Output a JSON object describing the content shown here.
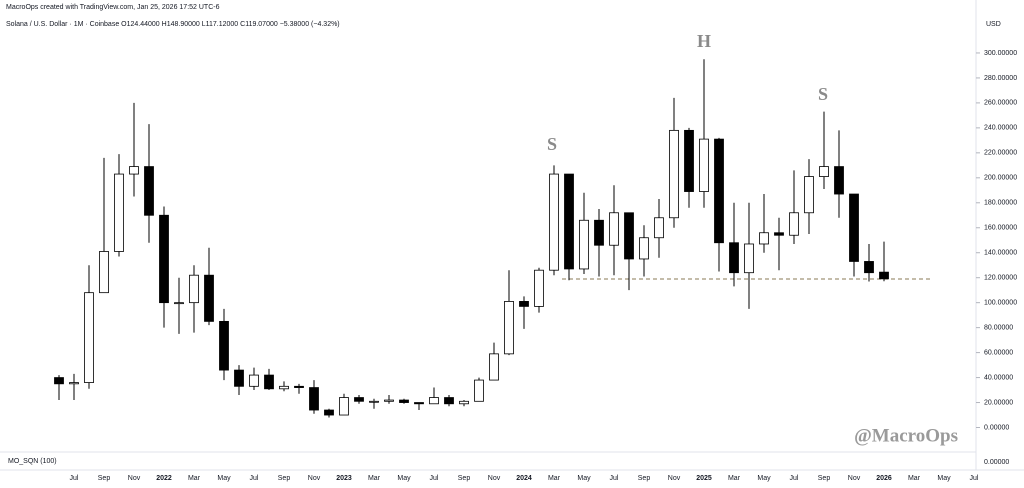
{
  "chart_data": {
    "type": "candlestick",
    "credit": "MacroOps created with TradingView.com, Jan 25, 2026 17:52 UTC-6",
    "legend": "Solana / U.S. Dollar · 1M · Coinbase  O124.44000  H148.90000  L117.12000  C119.07000  −5.38000 (−4.32%)",
    "currency": "USD",
    "annotations": [
      "S",
      "H",
      "S"
    ],
    "watermark": "@MacroOps",
    "indicator": {
      "name": "MO_SQN (100)",
      "ticks": [
        {
          "value": 0,
          "label": "0.00000"
        }
      ]
    },
    "categories": [
      null,
      "Jul",
      null,
      "Sep",
      null,
      "Nov",
      null,
      "2022",
      null,
      "Mar",
      null,
      "May",
      null,
      "Jul",
      null,
      "Sep",
      null,
      "Nov",
      null,
      "2023",
      null,
      "Mar",
      null,
      "May",
      null,
      "Jul",
      null,
      "Sep",
      null,
      "Nov",
      null,
      "2024",
      null,
      "Mar",
      null,
      "May",
      null,
      "Jul",
      null,
      "Sep",
      null,
      "Nov",
      null,
      "2025",
      null,
      "Mar",
      null,
      "May",
      null,
      "Jul",
      null,
      "Sep",
      null,
      "Nov",
      null,
      "2026",
      null,
      "Mar",
      null,
      "May",
      null,
      "Jul"
    ],
    "open": [
      40,
      35,
      36,
      108,
      141,
      203,
      209,
      170,
      100,
      100,
      122,
      85,
      46,
      33,
      42,
      31,
      33,
      32,
      14,
      10,
      24,
      21,
      21,
      22,
      20,
      19,
      24,
      19,
      21,
      38,
      59,
      101,
      97,
      126,
      203,
      127,
      166,
      146,
      172,
      135,
      152,
      168,
      238,
      189,
      231,
      148,
      124,
      147,
      156,
      154,
      172,
      201,
      209,
      187,
      133,
      124.44,
      null,
      null,
      null,
      null,
      null,
      null
    ],
    "high": [
      42,
      43,
      130,
      216,
      219,
      260,
      243,
      177,
      120,
      130,
      144,
      95,
      50,
      48,
      47,
      37,
      35,
      38,
      15,
      27,
      26,
      23,
      26,
      23,
      20,
      32,
      26,
      22,
      40,
      68,
      126,
      105,
      128,
      210,
      203,
      188,
      175,
      194,
      172,
      162,
      183,
      264,
      240,
      295,
      232,
      180,
      180,
      187,
      168,
      206,
      215,
      253,
      238,
      187,
      147,
      148.9,
      null,
      null,
      null,
      null,
      null,
      null
    ],
    "low": [
      22,
      22,
      31,
      108,
      137,
      185,
      148,
      80,
      75,
      76,
      82,
      38,
      26,
      30,
      30,
      29,
      27,
      11,
      8,
      10,
      19,
      15,
      19,
      19,
      14,
      19,
      17,
      17,
      21,
      38,
      58,
      79,
      92,
      122,
      118,
      123,
      121,
      122,
      110,
      121,
      136,
      160,
      176,
      176,
      125,
      113,
      95,
      140,
      126,
      147,
      155,
      191,
      168,
      121,
      117,
      117.12,
      null,
      null,
      null,
      null,
      null,
      null
    ],
    "close": [
      35,
      36,
      108,
      141,
      203,
      209,
      170,
      100,
      100,
      122,
      85,
      46,
      33,
      42,
      31,
      33,
      32,
      14,
      10,
      24,
      21,
      21,
      22,
      20,
      19,
      24,
      19,
      21,
      38,
      59,
      101,
      97,
      126,
      203,
      127,
      166,
      146,
      172,
      135,
      152,
      168,
      238,
      189,
      231,
      148,
      124,
      147,
      156,
      154,
      172,
      201,
      209,
      187,
      133,
      124,
      119.07,
      null,
      null,
      null,
      null,
      null,
      null
    ],
    "up_color": "#ffffff",
    "down_color": "#000000",
    "wick_color": "#000000",
    "neckline": 119,
    "ylim": [
      -10,
      328
    ],
    "yticks": [
      {
        "value": 0,
        "label": "0.00000"
      },
      {
        "value": 20,
        "label": "20.00000"
      },
      {
        "value": 40,
        "label": "40.00000"
      },
      {
        "value": 60,
        "label": "60.00000"
      },
      {
        "value": 80,
        "label": "80.00000"
      },
      {
        "value": 100,
        "label": "100.00000"
      },
      {
        "value": 120,
        "label": "120.00000"
      },
      {
        "value": 140,
        "label": "140.00000"
      },
      {
        "value": 160,
        "label": "160.00000"
      },
      {
        "value": 180,
        "label": "180.00000"
      },
      {
        "value": 200,
        "label": "200.00000"
      },
      {
        "value": 220,
        "label": "220.00000"
      },
      {
        "value": 240,
        "label": "240.00000"
      },
      {
        "value": 260,
        "label": "260.00000"
      },
      {
        "value": 280,
        "label": "280.00000"
      },
      {
        "value": 300,
        "label": "300.00000"
      }
    ]
  }
}
